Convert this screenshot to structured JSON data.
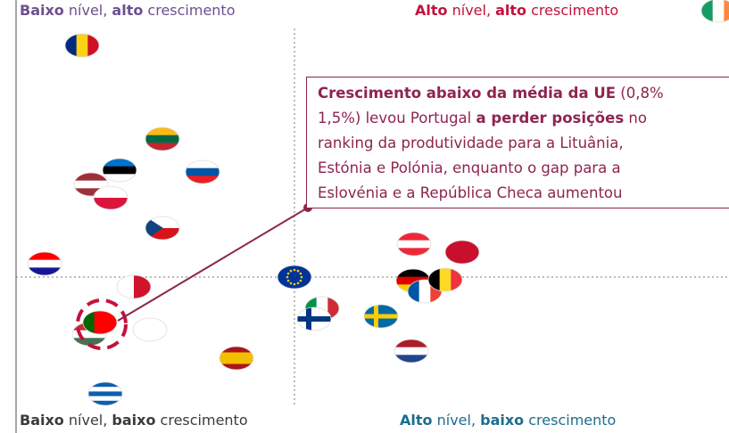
{
  "quadrants": [
    {
      "color": "#6d4f8f",
      "parts": [
        {
          "text": "Baixo",
          "bold": true
        },
        {
          "text": " nível, ",
          "bold": false
        },
        {
          "text": "alto",
          "bold": true
        },
        {
          "text": " crescimento",
          "bold": false
        }
      ]
    },
    {
      "color": "#c3123b",
      "parts": [
        {
          "text": "Alto",
          "bold": true
        },
        {
          "text": " nível, ",
          "bold": false
        },
        {
          "text": "alto",
          "bold": true
        },
        {
          "text": " crescimento",
          "bold": false
        }
      ]
    },
    {
      "color": "#3b3b3b",
      "parts": [
        {
          "text": "Baixo",
          "bold": true
        },
        {
          "text": " nível, ",
          "bold": false
        },
        {
          "text": "baixo",
          "bold": true
        },
        {
          "text": " crescimento",
          "bold": false
        }
      ]
    },
    {
      "color": "#1d6d8c",
      "parts": [
        {
          "text": "Alto",
          "bold": true
        },
        {
          "text": " nível, ",
          "bold": false
        },
        {
          "text": "baixo",
          "bold": true
        },
        {
          "text": " crescimento",
          "bold": false
        }
      ]
    }
  ],
  "annotation": {
    "color": "#8e2450",
    "lines": [
      [
        {
          "text": "Crescimento abaixo da média da UE",
          "bold": true
        },
        {
          "text": " (0,8%",
          "bold": false
        }
      ],
      [
        {
          "text": "1,5%) levou Portugal ",
          "bold": false
        },
        {
          "text": "a perder posições",
          "bold": true
        },
        {
          "text": " no",
          "bold": false
        }
      ],
      [
        {
          "text": "ranking da produtividade para a Lituânia,",
          "bold": false
        }
      ],
      [
        {
          "text": "Estónia e Polónia, enquanto o gap para a",
          "bold": false
        }
      ],
      [
        {
          "text": "Eslovénia e a República Checa aumentou",
          "bold": false
        }
      ]
    ]
  }
}
